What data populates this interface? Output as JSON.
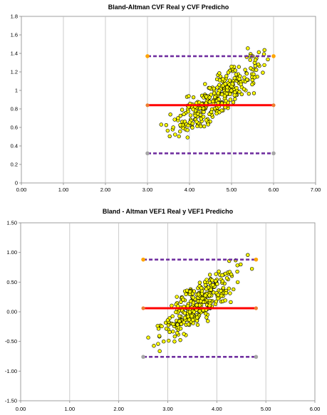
{
  "chart_data": [
    {
      "type": "scatter",
      "title": "Bland-Altman CVF Real y CVF Predicho",
      "xlabel": "",
      "ylabel": "",
      "xlim": [
        0,
        7
      ],
      "ylim": [
        0,
        1.8
      ],
      "xticks": [
        "0.00",
        "1.00",
        "2.00",
        "3.00",
        "4.00",
        "5.00",
        "6.00",
        "7.00"
      ],
      "yticks": [
        "0",
        "0.2",
        "0.4",
        "0.6",
        "0.8",
        "1",
        "1.2",
        "1.4",
        "1.6",
        "1.8"
      ],
      "grid": "vertical",
      "legend": "none",
      "point_color": "#FFFF00",
      "point_edge_color": "#000000",
      "mean_line": {
        "y": 0.84,
        "x": [
          3.0,
          6.0
        ],
        "color": "#FF0000"
      },
      "upper_limit": {
        "y": 1.37,
        "x": [
          3.0,
          6.0
        ],
        "color": "#7030A0",
        "end_color": "#FFA500"
      },
      "lower_limit": {
        "y": 0.32,
        "x": [
          3.0,
          6.0
        ],
        "color": "#7030A0",
        "end_color": "#A6A6A6"
      },
      "x_cluster": {
        "from": 3.2,
        "to": 6.1
      },
      "y_cluster": {
        "from": 0.22,
        "to": 1.7
      },
      "points_approx": 320
    },
    {
      "type": "scatter",
      "title": "Bland - Altman VEF1 Real y VEF1 Predicho",
      "xlabel": "",
      "ylabel": "",
      "xlim": [
        0,
        6
      ],
      "ylim": [
        -1.5,
        1.5
      ],
      "xticks": [
        "0.00",
        "1.00",
        "2.00",
        "3.00",
        "4.00",
        "5.00",
        "6.00"
      ],
      "yticks": [
        "-1.50",
        "-1.00",
        "-0.50",
        "0.00",
        "0.50",
        "1.00",
        "1.50"
      ],
      "grid": "vertical",
      "legend": "none",
      "point_color": "#FFFF00",
      "point_edge_color": "#000000",
      "mean_line": {
        "y": 0.06,
        "x": [
          2.5,
          4.8
        ],
        "color": "#FF0000"
      },
      "upper_limit": {
        "y": 0.88,
        "x": [
          2.5,
          4.8
        ],
        "color": "#7030A0",
        "end_color": "#FFA500"
      },
      "lower_limit": {
        "y": -0.76,
        "x": [
          2.5,
          4.8
        ],
        "color": "#7030A0",
        "end_color": "#A6A6A6"
      },
      "x_cluster": {
        "from": 2.5,
        "to": 4.8
      },
      "y_cluster": {
        "from": -0.93,
        "to": 1.35
      },
      "points_approx": 330
    }
  ]
}
